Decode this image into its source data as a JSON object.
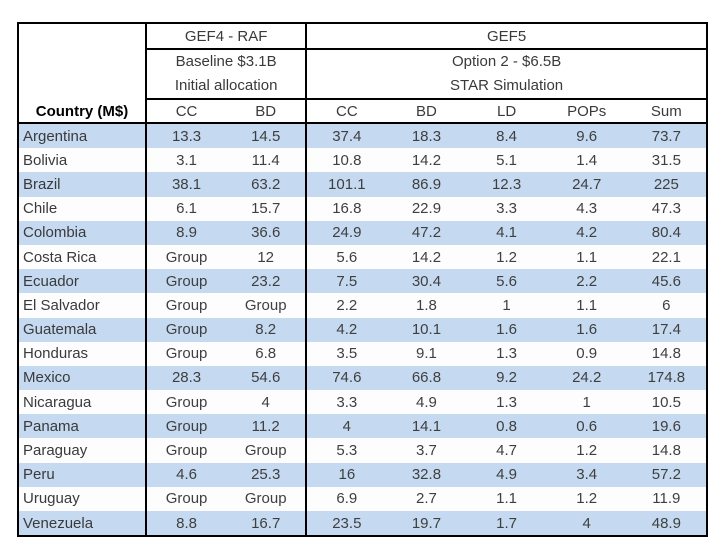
{
  "table": {
    "country_header": "Country (M$)",
    "groups": [
      {
        "title": "GEF4 - RAF",
        "subtitle_line1": "Baseline  $3.1B",
        "subtitle_line2": "Initial allocation",
        "columns": [
          "CC",
          "BD"
        ]
      },
      {
        "title": "GEF5",
        "subtitle_line1": "Option 2 - $6.5B",
        "subtitle_line2": "STAR Simulation",
        "columns": [
          "CC",
          "BD",
          "LD",
          "POPs",
          "Sum"
        ]
      }
    ],
    "rows": [
      {
        "country": "Argentina",
        "values": [
          "13.3",
          "14.5",
          "37.4",
          "18.3",
          "8.4",
          "9.6",
          "73.7"
        ]
      },
      {
        "country": "Bolivia",
        "values": [
          "3.1",
          "11.4",
          "10.8",
          "14.2",
          "5.1",
          "1.4",
          "31.5"
        ]
      },
      {
        "country": "Brazil",
        "values": [
          "38.1",
          "63.2",
          "101.1",
          "86.9",
          "12.3",
          "24.7",
          "225"
        ]
      },
      {
        "country": "Chile",
        "values": [
          "6.1",
          "15.7",
          "16.8",
          "22.9",
          "3.3",
          "4.3",
          "47.3"
        ]
      },
      {
        "country": "Colombia",
        "values": [
          "8.9",
          "36.6",
          "24.9",
          "47.2",
          "4.1",
          "4.2",
          "80.4"
        ]
      },
      {
        "country": "Costa Rica",
        "values": [
          "Group",
          "12",
          "5.6",
          "14.2",
          "1.2",
          "1.1",
          "22.1"
        ]
      },
      {
        "country": "Ecuador",
        "values": [
          "Group",
          "23.2",
          "7.5",
          "30.4",
          "5.6",
          "2.2",
          "45.6"
        ]
      },
      {
        "country": "El Salvador",
        "values": [
          "Group",
          "Group",
          "2.2",
          "1.8",
          "1",
          "1.1",
          "6"
        ]
      },
      {
        "country": "Guatemala",
        "values": [
          "Group",
          "8.2",
          "4.2",
          "10.1",
          "1.6",
          "1.6",
          "17.4"
        ]
      },
      {
        "country": "Honduras",
        "values": [
          "Group",
          "6.8",
          "3.5",
          "9.1",
          "1.3",
          "0.9",
          "14.8"
        ]
      },
      {
        "country": "Mexico",
        "values": [
          "28.3",
          "54.6",
          "74.6",
          "66.8",
          "9.2",
          "24.2",
          "174.8"
        ]
      },
      {
        "country": "Nicaragua",
        "values": [
          "Group",
          "4",
          "3.3",
          "4.9",
          "1.3",
          "1",
          "10.5"
        ]
      },
      {
        "country": "Panama",
        "values": [
          "Group",
          "11.2",
          "4",
          "14.1",
          "0.8",
          "0.6",
          "19.6"
        ]
      },
      {
        "country": "Paraguay",
        "values": [
          "Group",
          "Group",
          "5.3",
          "3.7",
          "4.7",
          "1.2",
          "14.8"
        ]
      },
      {
        "country": "Peru",
        "values": [
          "4.6",
          "25.3",
          "16",
          "32.8",
          "4.9",
          "3.4",
          "57.2"
        ]
      },
      {
        "country": "Uruguay",
        "values": [
          "Group",
          "Group",
          "6.9",
          "2.7",
          "1.1",
          "1.2",
          "11.9"
        ]
      },
      {
        "country": "Venezuela",
        "values": [
          "8.8",
          "16.7",
          "23.5",
          "19.7",
          "1.7",
          "4",
          "48.9"
        ]
      }
    ]
  },
  "colors": {
    "row_highlight": "#c5d9f1",
    "row_base": "#ffffff",
    "border": "#000000",
    "text": "#3f3f3f"
  }
}
